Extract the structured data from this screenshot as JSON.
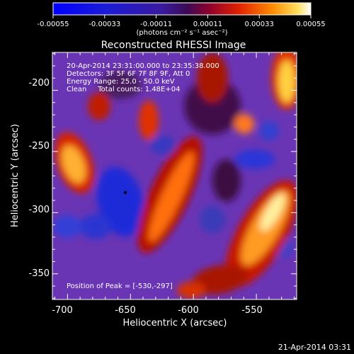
{
  "colorbar": {
    "tick_labels": [
      "-0.00055",
      "-0.00033",
      "-0.00011",
      "0.00011",
      "0.00033",
      "0.00055"
    ],
    "unit": "(photons cm⁻² s⁻¹ asec⁻²)",
    "range": [
      -0.00055,
      0.00055
    ]
  },
  "image": {
    "title": "Reconstructed RHESSI Image",
    "info_lines": [
      "20-Apr-2014 23:31:00.000 to 23:35:38.000",
      "Detectors: 3F 5F 6F 7F 8F 9F, Att 0",
      "Energy Range: 25.0 - 50.0 keV",
      "Clean     Total counts: 1.48E+04"
    ],
    "peak_label": "Position of Peak = [-530,-297]",
    "xlabel": "Heliocentric X (arcsec)",
    "ylabel": "Heliocentric Y (arcsec)",
    "x_ticks": [
      "-700",
      "-650",
      "-600",
      "-550"
    ],
    "y_ticks": [
      "-200",
      "-250",
      "-300",
      "-350"
    ],
    "x_range": [
      -712,
      -518
    ],
    "y_range": [
      -169,
      -371
    ]
  },
  "footer": {
    "timestamp": "21-Apr-2014 03:31"
  },
  "chart_data": {
    "type": "heatmap",
    "title": "Reconstructed RHESSI Image",
    "xlabel": "Heliocentric X (arcsec)",
    "ylabel": "Heliocentric Y (arcsec)",
    "xlim": [
      -712,
      -518
    ],
    "ylim": [
      -371,
      -169
    ],
    "color_range": [
      -0.00055,
      0.00055
    ],
    "peak": [
      -530,
      -297
    ]
  }
}
